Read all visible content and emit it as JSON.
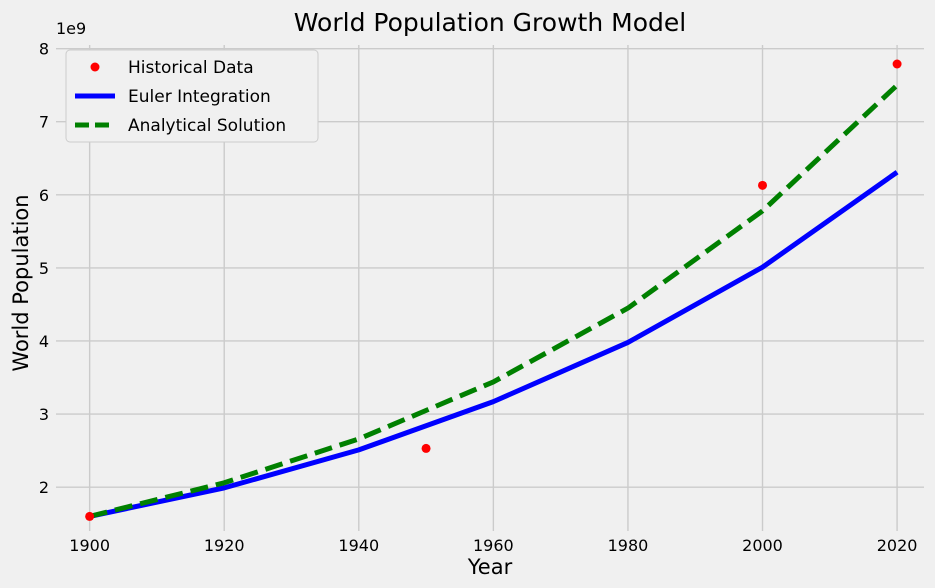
{
  "chart_data": {
    "type": "line",
    "title": "World Population Growth Model",
    "xlabel": "Year",
    "ylabel": "World Population",
    "y_offset_label": "1e9",
    "xlim": [
      1895,
      2024
    ],
    "ylim": [
      1.4,
      8.05
    ],
    "x_ticks": [
      1900,
      1920,
      1940,
      1960,
      1980,
      2000,
      2020
    ],
    "y_ticks": [
      2,
      3,
      4,
      5,
      6,
      7,
      8
    ],
    "grid": true,
    "legend_position": "top-left",
    "series": [
      {
        "name": "Historical Data",
        "style": "markers",
        "color": "#ff0000",
        "x": [
          1900,
          1950,
          2000,
          2020
        ],
        "y": [
          1.6,
          2.53,
          6.13,
          7.79
        ]
      },
      {
        "name": "Euler Integration",
        "style": "solid",
        "color": "#0000ff",
        "x": [
          1900,
          1920,
          1940,
          1960,
          1980,
          2000,
          2020
        ],
        "y": [
          1.6,
          1.99,
          2.51,
          3.17,
          3.98,
          5.01,
          6.31
        ]
      },
      {
        "name": "Analytical Solution",
        "style": "dashed",
        "color": "#008000",
        "x": [
          1900,
          1920,
          1940,
          1960,
          1980,
          2000,
          2020
        ],
        "y": [
          1.6,
          2.06,
          2.66,
          3.44,
          4.45,
          5.78,
          7.5
        ]
      }
    ]
  }
}
